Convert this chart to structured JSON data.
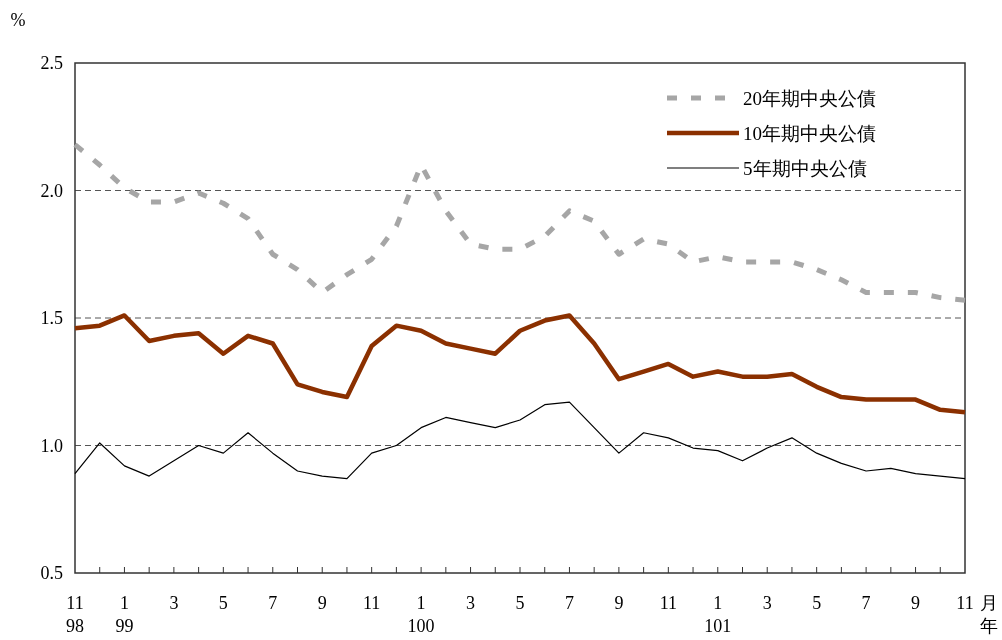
{
  "chart_data": {
    "type": "line",
    "ylabel": "%",
    "xlabel": "月年",
    "categories": [
      "11\n98",
      null,
      "1\n99",
      null,
      "3",
      null,
      "5",
      null,
      "7",
      null,
      "9",
      null,
      "11",
      null,
      "1\n100",
      null,
      "3",
      null,
      "5",
      null,
      "7",
      null,
      "9",
      null,
      "11",
      null,
      "1\n101",
      null,
      "3",
      null,
      "5",
      null,
      "7",
      null,
      "9",
      null,
      "11"
    ],
    "ylim": [
      0.5,
      2.5
    ],
    "yticks": [
      {
        "value": 0.5,
        "label": "0.5"
      },
      {
        "value": 1.0,
        "label": "1.0"
      },
      {
        "value": 1.5,
        "label": "1.5"
      },
      {
        "value": 2.0,
        "label": "2.0"
      },
      {
        "value": 2.5,
        "label": "2.5"
      }
    ],
    "grid": "y",
    "legend": "top right",
    "series": [
      {
        "name": "20年期中央公債",
        "color": "#a6a6a6",
        "line_style": "dashed",
        "values": [
          2.18,
          2.1,
          2.01,
          1.955,
          1.955,
          1.99,
          1.95,
          1.89,
          1.75,
          1.69,
          1.6,
          1.67,
          1.73,
          1.86,
          2.1,
          1.92,
          1.79,
          1.77,
          1.77,
          1.82,
          1.92,
          1.88,
          1.75,
          1.81,
          1.79,
          1.72,
          1.74,
          1.72,
          1.72,
          1.72,
          1.69,
          1.65,
          1.6,
          1.6,
          1.6,
          1.58,
          1.57
        ]
      },
      {
        "name": "10年期中央公債",
        "color": "#8b3000",
        "line_style": "solid",
        "values": [
          1.46,
          1.47,
          1.51,
          1.41,
          1.43,
          1.44,
          1.36,
          1.43,
          1.4,
          1.24,
          1.21,
          1.19,
          1.39,
          1.47,
          1.45,
          1.4,
          1.38,
          1.36,
          1.45,
          1.49,
          1.51,
          1.4,
          1.26,
          1.29,
          1.32,
          1.27,
          1.29,
          1.27,
          1.27,
          1.28,
          1.23,
          1.19,
          1.18,
          1.18,
          1.18,
          1.14,
          1.13
        ]
      },
      {
        "name": "5年期中央公債",
        "color": "#000000",
        "line_style": "solid",
        "values": [
          0.89,
          1.01,
          0.92,
          0.88,
          0.94,
          1.0,
          0.97,
          1.05,
          0.97,
          0.9,
          0.88,
          0.87,
          0.97,
          1.0,
          1.07,
          1.11,
          1.09,
          1.07,
          1.1,
          1.16,
          1.17,
          1.07,
          0.97,
          1.05,
          1.03,
          0.99,
          0.98,
          0.94,
          0.99,
          1.03,
          0.97,
          0.93,
          0.9,
          0.91,
          0.89,
          0.88,
          0.87
        ]
      }
    ]
  }
}
